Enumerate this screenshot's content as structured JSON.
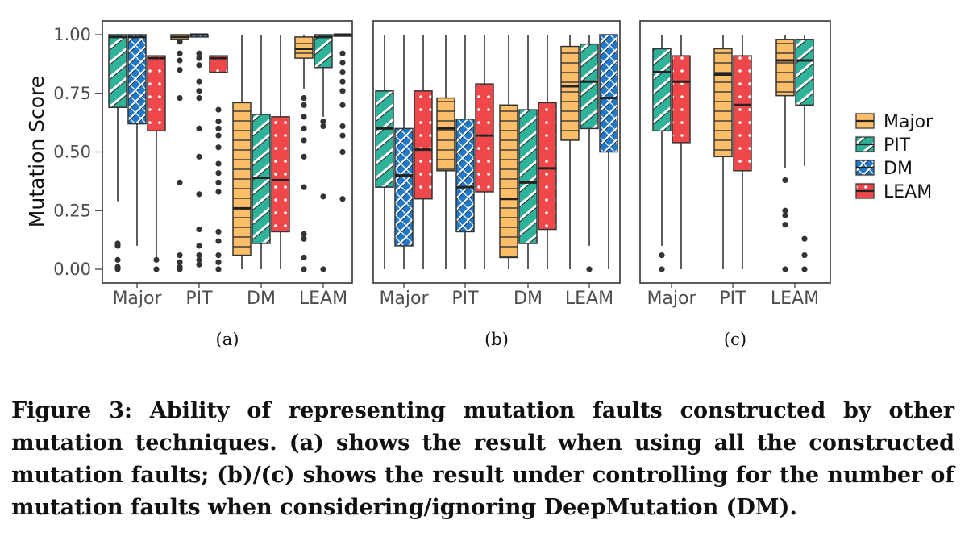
{
  "figure": {
    "y_axis_title": "Mutation Score",
    "y_ticks": [
      "1.00",
      "0.75",
      "0.50",
      "0.25",
      "0.00"
    ],
    "legend": [
      "Major",
      "PIT",
      "DM",
      "LEAM"
    ],
    "colors": {
      "Major": "#fdbe6a",
      "PIT": "#2fb29a",
      "DM": "#1f78c8",
      "LEAM": "#f0474b"
    },
    "caption": "Figure 3: Ability of representing mutation faults constructed by other mutation techniques. (a) shows the result when using all the constructed mutation faults; (b)/(c) shows the result under controlling for the number of mutation faults when considering/ignoring DeepMutation (DM)."
  },
  "chart_data": [
    {
      "type": "box",
      "panel_label": "(a)",
      "categories": [
        "Major",
        "PIT",
        "DM",
        "LEAM"
      ],
      "ylim": [
        0,
        1
      ],
      "ylabel": "Mutation Score",
      "series_names": [
        "Major",
        "PIT",
        "DM",
        "LEAM"
      ],
      "groups": [
        {
          "category": "Major",
          "boxes": [
            {
              "series": "PIT",
              "q1": 0.69,
              "median": 0.99,
              "q3": 1.0,
              "wlo": 0.29,
              "whi": 1.0,
              "outliers": []
            },
            {
              "series": "DM",
              "q1": 0.62,
              "median": 0.99,
              "q3": 1.0,
              "wlo": 0.1,
              "whi": 1.0,
              "outliers": []
            },
            {
              "series": "LEAM",
              "q1": 0.59,
              "median": 0.9,
              "q3": 0.91,
              "wlo": 0.04,
              "whi": 0.91,
              "outliers": []
            }
          ],
          "outliers": [
            {
              "series": "PIT",
              "values": [
                0.11,
                0.1,
                0.04,
                0.01,
                0.0
              ]
            },
            {
              "series": "LEAM",
              "values": [
                0.04,
                0.0
              ]
            }
          ]
        },
        {
          "category": "PIT",
          "boxes": [
            {
              "series": "Major",
              "q1": 0.98,
              "median": 0.99,
              "q3": 1.0,
              "wlo": 0.98,
              "whi": 1.0,
              "outliers": []
            },
            {
              "series": "DM",
              "q1": 0.99,
              "median": 1.0,
              "q3": 1.0,
              "wlo": 0.99,
              "whi": 1.0,
              "outliers": []
            },
            {
              "series": "LEAM",
              "q1": 0.84,
              "median": 0.9,
              "q3": 0.91,
              "wlo": 0.84,
              "whi": 0.91,
              "outliers": []
            }
          ],
          "outliers": [
            {
              "series": "Major",
              "values": [
                0.97,
                0.92,
                0.89,
                0.85,
                0.73,
                0.37,
                0.06,
                0.03,
                0.01,
                0.0
              ]
            },
            {
              "series": "DM",
              "values": [
                0.92,
                0.9,
                0.87,
                0.8,
                0.76,
                0.73,
                0.6,
                0.48,
                0.32,
                0.17,
                0.1,
                0.06,
                0.04,
                0.02
              ]
            },
            {
              "series": "LEAM",
              "values": [
                0.68,
                0.63,
                0.6,
                0.57,
                0.52,
                0.45,
                0.41,
                0.37,
                0.33,
                0.16,
                0.12,
                0.06,
                0.03,
                0.0
              ]
            }
          ]
        },
        {
          "category": "DM",
          "boxes": [
            {
              "series": "Major",
              "q1": 0.06,
              "median": 0.26,
              "q3": 0.71,
              "wlo": 0.0,
              "whi": 1.0,
              "outliers": []
            },
            {
              "series": "PIT",
              "q1": 0.11,
              "median": 0.39,
              "q3": 0.66,
              "wlo": 0.0,
              "whi": 1.0,
              "outliers": []
            },
            {
              "series": "LEAM",
              "q1": 0.16,
              "median": 0.38,
              "q3": 0.65,
              "wlo": 0.0,
              "whi": 1.0,
              "outliers": []
            }
          ],
          "outliers": []
        },
        {
          "category": "LEAM",
          "boxes": [
            {
              "series": "Major",
              "q1": 0.9,
              "median": 0.94,
              "q3": 0.99,
              "wlo": 0.77,
              "whi": 1.0,
              "outliers": []
            },
            {
              "series": "PIT",
              "q1": 0.86,
              "median": 0.99,
              "q3": 1.0,
              "wlo": 0.65,
              "whi": 1.0,
              "outliers": []
            },
            {
              "series": "DM",
              "q1": 1.0,
              "median": 1.0,
              "q3": 1.0,
              "wlo": 1.0,
              "whi": 1.0,
              "outliers": []
            }
          ],
          "outliers": [
            {
              "series": "Major",
              "values": [
                0.73,
                0.7,
                0.65,
                0.6,
                0.55,
                0.48,
                0.35,
                0.15,
                0.13,
                0.05,
                0.0
              ]
            },
            {
              "series": "PIT",
              "values": [
                0.63,
                0.61,
                0.31,
                0.0
              ]
            },
            {
              "series": "DM",
              "values": [
                0.92,
                0.88,
                0.84,
                0.8,
                0.76,
                0.7,
                0.61,
                0.57,
                0.5,
                0.3
              ]
            }
          ]
        }
      ]
    },
    {
      "type": "box",
      "panel_label": "(b)",
      "categories": [
        "Major",
        "PIT",
        "DM",
        "LEAM"
      ],
      "ylim": [
        0,
        1
      ],
      "series_names": [
        "Major",
        "PIT",
        "DM",
        "LEAM"
      ],
      "groups": [
        {
          "category": "Major",
          "boxes": [
            {
              "series": "PIT",
              "q1": 0.35,
              "median": 0.6,
              "q3": 0.76,
              "wlo": 0.0,
              "whi": 1.0,
              "outliers": []
            },
            {
              "series": "DM",
              "q1": 0.1,
              "median": 0.4,
              "q3": 0.6,
              "wlo": 0.0,
              "whi": 1.0,
              "outliers": []
            },
            {
              "series": "LEAM",
              "q1": 0.3,
              "median": 0.51,
              "q3": 0.76,
              "wlo": 0.0,
              "whi": 1.0,
              "outliers": []
            }
          ],
          "outliers": []
        },
        {
          "category": "PIT",
          "boxes": [
            {
              "series": "Major",
              "q1": 0.42,
              "median": 0.6,
              "q3": 0.73,
              "wlo": 0.0,
              "whi": 1.0,
              "outliers": []
            },
            {
              "series": "DM",
              "q1": 0.16,
              "median": 0.35,
              "q3": 0.64,
              "wlo": 0.0,
              "whi": 1.0,
              "outliers": []
            },
            {
              "series": "LEAM",
              "q1": 0.33,
              "median": 0.57,
              "q3": 0.79,
              "wlo": 0.0,
              "whi": 1.0,
              "outliers": []
            }
          ],
          "outliers": []
        },
        {
          "category": "DM",
          "boxes": [
            {
              "series": "Major",
              "q1": 0.05,
              "median": 0.3,
              "q3": 0.7,
              "wlo": 0.0,
              "whi": 1.0,
              "outliers": []
            },
            {
              "series": "PIT",
              "q1": 0.11,
              "median": 0.37,
              "q3": 0.68,
              "wlo": 0.0,
              "whi": 1.0,
              "outliers": []
            },
            {
              "series": "LEAM",
              "q1": 0.17,
              "median": 0.43,
              "q3": 0.71,
              "wlo": 0.0,
              "whi": 1.0,
              "outliers": []
            }
          ],
          "outliers": []
        },
        {
          "category": "LEAM",
          "boxes": [
            {
              "series": "Major",
              "q1": 0.55,
              "median": 0.78,
              "q3": 0.95,
              "wlo": 0.0,
              "whi": 1.0,
              "outliers": []
            },
            {
              "series": "PIT",
              "q1": 0.6,
              "median": 0.8,
              "q3": 0.96,
              "wlo": 0.1,
              "whi": 1.0,
              "outliers": [
                0.0
              ]
            },
            {
              "series": "DM",
              "q1": 0.5,
              "median": 0.73,
              "q3": 1.0,
              "wlo": 0.0,
              "whi": 1.0,
              "outliers": []
            }
          ],
          "outliers": []
        }
      ]
    },
    {
      "type": "box",
      "panel_label": "(c)",
      "categories": [
        "Major",
        "PIT",
        "LEAM"
      ],
      "ylim": [
        0,
        1
      ],
      "series_names": [
        "Major",
        "PIT",
        "LEAM"
      ],
      "groups": [
        {
          "category": "Major",
          "boxes": [
            {
              "series": "PIT",
              "q1": 0.59,
              "median": 0.84,
              "q3": 0.94,
              "wlo": 0.1,
              "whi": 1.0,
              "outliers": []
            },
            {
              "series": "LEAM",
              "q1": 0.54,
              "median": 0.8,
              "q3": 0.91,
              "wlo": 0.0,
              "whi": 1.0,
              "outliers": []
            }
          ],
          "outliers": [
            {
              "series": "PIT",
              "values": [
                0.06,
                0.0
              ]
            }
          ]
        },
        {
          "category": "PIT",
          "boxes": [
            {
              "series": "Major",
              "q1": 0.48,
              "median": 0.83,
              "q3": 0.94,
              "wlo": 0.0,
              "whi": 1.0,
              "outliers": []
            },
            {
              "series": "LEAM",
              "q1": 0.42,
              "median": 0.7,
              "q3": 0.91,
              "wlo": 0.0,
              "whi": 1.0,
              "outliers": []
            }
          ],
          "outliers": []
        },
        {
          "category": "LEAM",
          "boxes": [
            {
              "series": "Major",
              "q1": 0.74,
              "median": 0.89,
              "q3": 0.98,
              "wlo": 0.43,
              "whi": 1.0,
              "outliers": []
            },
            {
              "series": "PIT",
              "q1": 0.7,
              "median": 0.89,
              "q3": 0.98,
              "wlo": 0.44,
              "whi": 1.0,
              "outliers": []
            }
          ],
          "outliers": [
            {
              "series": "Major",
              "values": [
                0.38,
                0.25,
                0.23,
                0.19,
                0.0
              ]
            },
            {
              "series": "PIT",
              "values": [
                0.13,
                0.06,
                0.0
              ]
            }
          ]
        }
      ]
    }
  ]
}
